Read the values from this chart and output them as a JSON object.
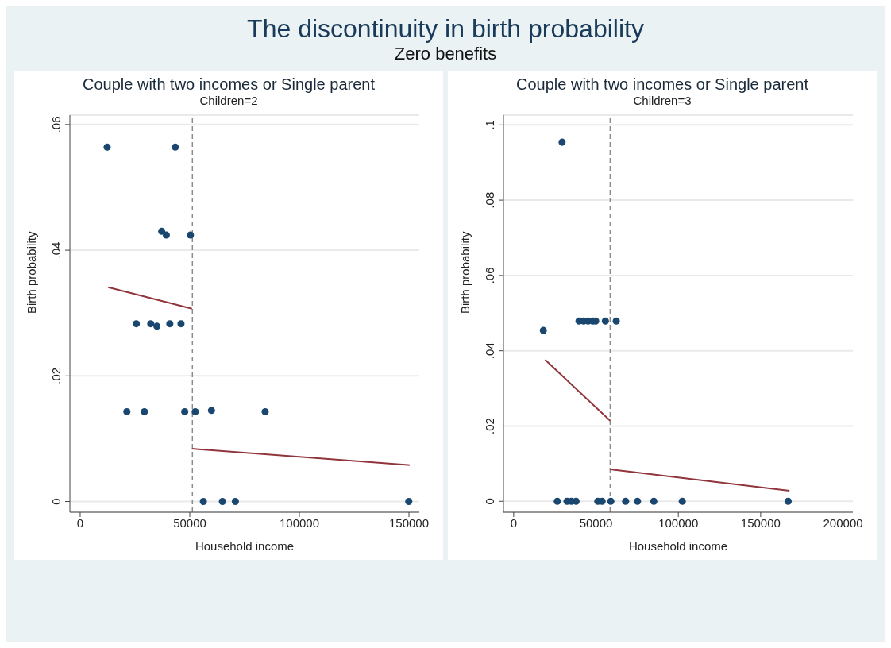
{
  "chart_data": [
    {
      "type": "scatter",
      "title": "Couple with two incomes or Single parent",
      "subtitle": "Children=2",
      "annotations": [
        "The discontinuity in birth probability",
        "Zero benefits"
      ],
      "xlabel": "Household income",
      "ylabel": "Birth probability",
      "marker": "circle",
      "grid": "y",
      "legend": false,
      "xlim": [
        -4700,
        154700
      ],
      "xticks": [
        0,
        50000,
        100000,
        150000
      ],
      "ylim": [
        -0.0017,
        0.0615
      ],
      "yticks": [
        0,
        {
          "value": 0.02,
          "label": ".02"
        },
        {
          "value": 0.04,
          "label": ".04"
        },
        {
          "value": 0.06,
          "label": ".06"
        }
      ],
      "ref_lines": [
        {
          "axis": "x",
          "value": 51200,
          "color": "#8c8c8c",
          "line_style": "dashed"
        }
      ],
      "series": [
        {
          "color": "#1a476f",
          "x": [
            12300,
            43400,
            37200,
            39300,
            50300,
            25600,
            32200,
            35000,
            40900,
            46000,
            21300,
            29300,
            47700,
            52500,
            59900,
            84400,
            56200,
            64900,
            70800,
            149900
          ],
          "values": [
            0.0564,
            0.0564,
            0.043,
            0.0424,
            0.0424,
            0.0283,
            0.0283,
            0.0279,
            0.0283,
            0.0283,
            0.0143,
            0.0143,
            0.0143,
            0.0143,
            0.0145,
            0.0143,
            0,
            0,
            0,
            0
          ]
        },
        {
          "type": "line",
          "color": "#90353b",
          "line_style": "solid",
          "marker": "none",
          "x": [
            12800,
            51000
          ],
          "values": [
            0.0341,
            0.0307
          ]
        },
        {
          "type": "line",
          "color": "#90353b",
          "line_style": "solid",
          "marker": "none",
          "x": [
            51000,
            150300
          ],
          "values": [
            0.0084,
            0.0058
          ]
        }
      ]
    },
    {
      "type": "scatter",
      "title": "Couple with two incomes or Single parent",
      "subtitle": "Children=3",
      "xlabel": "Household income",
      "ylabel": "Birth probability",
      "marker": "circle",
      "grid": "y",
      "legend": false,
      "xlim": [
        -6200,
        206000
      ],
      "xticks": [
        0,
        50000,
        100000,
        150000,
        200000
      ],
      "ylim": [
        -0.0029,
        0.1026
      ],
      "yticks": [
        0,
        {
          "value": 0.02,
          "label": ".02"
        },
        {
          "value": 0.04,
          "label": ".04"
        },
        {
          "value": 0.06,
          "label": ".06"
        },
        {
          "value": 0.08,
          "label": ".08"
        },
        {
          "value": 0.1,
          "label": ".1"
        }
      ],
      "ref_lines": [
        {
          "axis": "x",
          "value": 58600,
          "color": "#8c8c8c",
          "line_style": "dashed"
        }
      ],
      "series": [
        {
          "color": "#1a476f",
          "x": [
            29400,
            18000,
            39700,
            42500,
            45200,
            48000,
            49800,
            55700,
            62300,
            26500,
            32400,
            35100,
            37900,
            51100,
            53700,
            59000,
            68000,
            75200,
            85100,
            102400,
            166700
          ],
          "values": [
            0.0954,
            0.0454,
            0.0479,
            0.0479,
            0.0479,
            0.0479,
            0.0479,
            0.0479,
            0.0479,
            0,
            0,
            0,
            0,
            0,
            0,
            0,
            0,
            0,
            0,
            0,
            0
          ]
        },
        {
          "type": "line",
          "color": "#90353b",
          "line_style": "solid",
          "marker": "none",
          "x": [
            19100,
            58600
          ],
          "values": [
            0.0376,
            0.0214
          ]
        },
        {
          "type": "line",
          "color": "#90353b",
          "line_style": "solid",
          "marker": "none",
          "x": [
            58600,
            167500
          ],
          "values": [
            0.0085,
            0.0028
          ]
        }
      ]
    }
  ]
}
